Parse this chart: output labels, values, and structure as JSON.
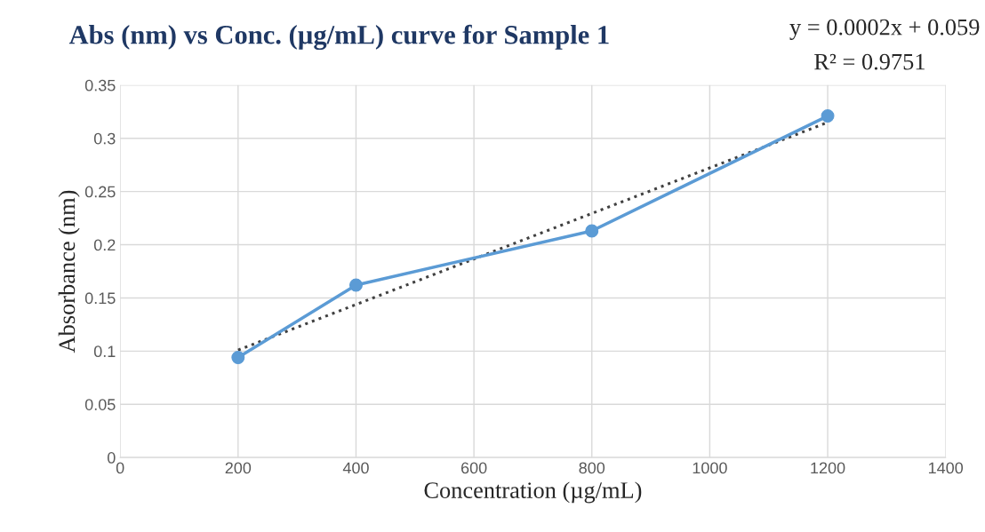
{
  "chart_data": {
    "type": "line",
    "title": "Abs (nm) vs Conc. (µg/mL) curve for Sample 1",
    "xlabel": "Concentration (µg/mL)",
    "ylabel": "Absorbance (nm)",
    "annotations": [
      "y = 0.0002x + 0.059",
      "R² = 0.9751"
    ],
    "series": [
      {
        "x": [
          200,
          400,
          800,
          1200
        ],
        "values": [
          0.094,
          0.162,
          0.213,
          0.321
        ],
        "color": "#5b9bd5",
        "marker": "circle",
        "line_style": "solid"
      },
      {
        "type": "line",
        "x": [
          200,
          1200
        ],
        "values": [
          0.101,
          0.315
        ],
        "color": "#404040",
        "marker": "none",
        "line_style": "dotted"
      }
    ],
    "xlim": [
      0,
      1400
    ],
    "xticks": [
      0,
      200,
      400,
      600,
      800,
      1000,
      1200,
      1400
    ],
    "ylim": [
      0,
      0.35
    ],
    "yticks": [
      0,
      0.05,
      0.1,
      0.15,
      0.2,
      0.25,
      0.3,
      0.35
    ],
    "grid": true,
    "legend": false
  }
}
